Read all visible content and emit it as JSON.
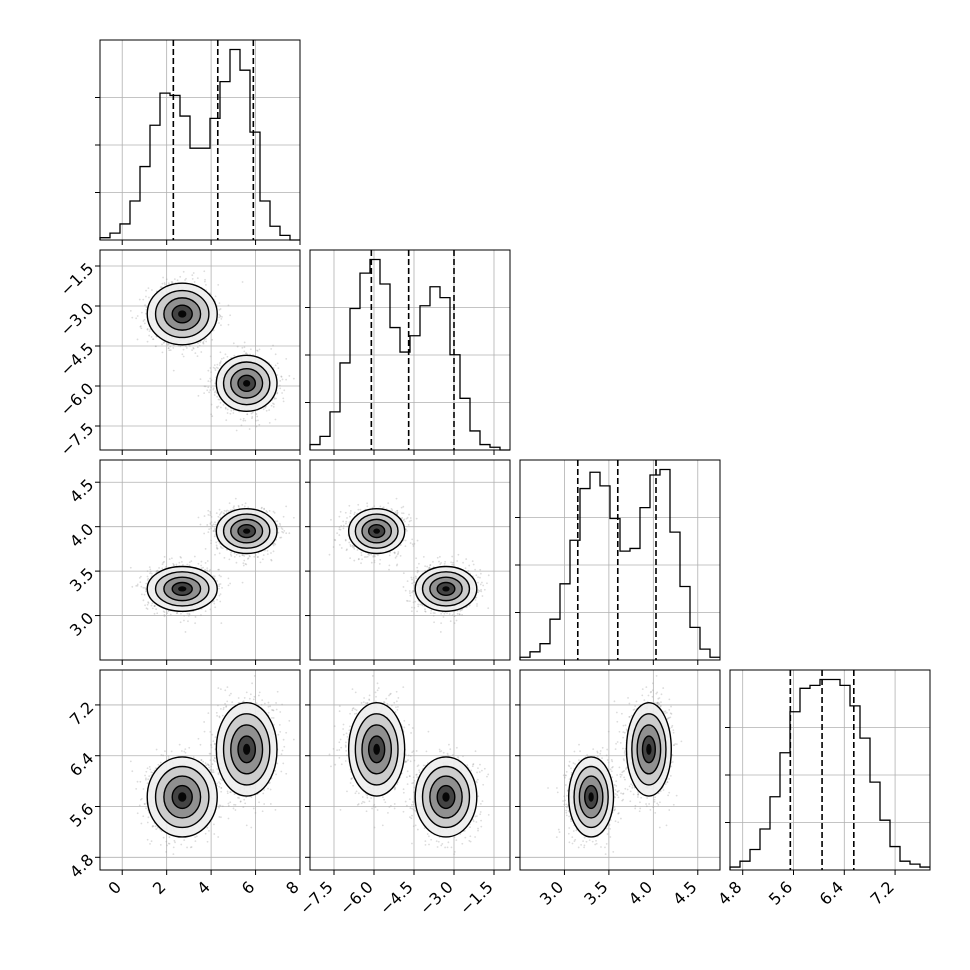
{
  "chart_data": {
    "type": "corner",
    "title": "",
    "grid": true,
    "colors": {
      "line": "#000000",
      "grid": "#b0b0b0",
      "points": "#9a9a9a"
    },
    "variables": [
      {
        "label": "",
        "range": [
          -1.0,
          8.0
        ],
        "ticks": [
          "0",
          "2",
          "4",
          "6",
          "8"
        ]
      },
      {
        "label": "",
        "range": [
          -8.4,
          -0.9
        ],
        "ticks": [
          "−7.5",
          "−6.0",
          "−4.5",
          "−3.0",
          "−1.5"
        ]
      },
      {
        "label": "",
        "range": [
          2.5,
          4.75
        ],
        "ticks": [
          "3.0",
          "3.5",
          "4.0",
          "4.5"
        ]
      },
      {
        "label": "",
        "range": [
          4.6,
          7.75
        ],
        "ticks": [
          "4.8",
          "5.6",
          "6.4",
          "7.2"
        ]
      }
    ],
    "quantiles": [
      [
        2.3,
        4.3,
        5.9
      ],
      [
        -6.1,
        -4.7,
        -3.0
      ],
      [
        3.15,
        3.6,
        4.03
      ],
      [
        5.55,
        6.05,
        6.55
      ]
    ],
    "histograms": [
      {
        "edges_start": -1.0,
        "bin_width": 0.45,
        "counts": [
          1,
          3,
          7,
          17,
          32,
          50,
          64,
          63,
          54,
          40,
          40,
          53,
          69,
          83,
          74,
          47,
          17,
          6,
          2,
          0
        ]
      },
      {
        "edges_start": -8.4,
        "bin_width": 0.375,
        "counts": [
          2,
          5,
          14,
          32,
          52,
          65,
          70,
          61,
          45,
          36,
          42,
          53,
          60,
          56,
          35,
          19,
          7,
          2,
          1,
          0
        ]
      },
      {
        "edges_start": 2.5,
        "bin_width": 0.1125,
        "counts": [
          1,
          3,
          6,
          15,
          28,
          44,
          63,
          69,
          64,
          52,
          40,
          41,
          56,
          68,
          70,
          47,
          27,
          12,
          4,
          1
        ]
      },
      {
        "edges_start": 4.6,
        "bin_width": 0.1575,
        "counts": [
          1,
          3,
          7,
          14,
          25,
          40,
          54,
          62,
          63,
          65,
          65,
          63,
          56,
          45,
          30,
          17,
          8,
          3,
          2,
          1
        ]
      }
    ],
    "clusters": [
      {
        "mean": [
          2.7,
          -3.3,
          3.3,
          5.75
        ],
        "sd": [
          0.75,
          0.55,
          0.12,
          0.3
        ]
      },
      {
        "mean": [
          5.6,
          -5.9,
          3.95,
          6.5
        ],
        "sd": [
          0.65,
          0.5,
          0.12,
          0.35
        ]
      }
    ],
    "points_per_cluster": 1300
  }
}
